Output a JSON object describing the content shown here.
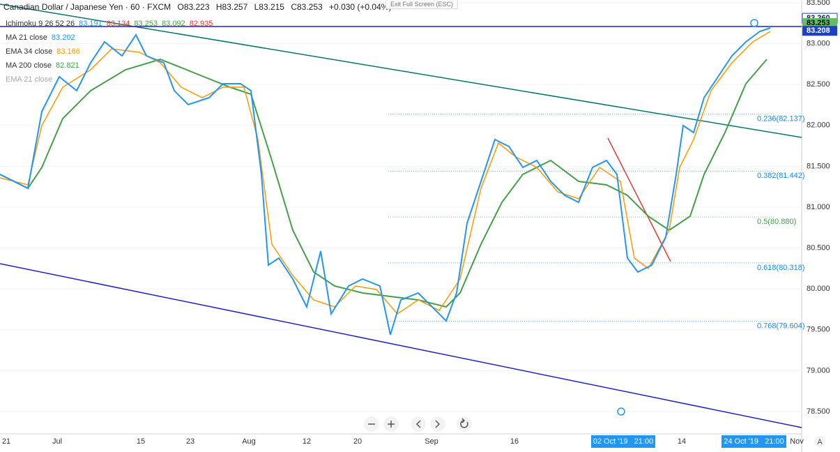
{
  "header": {
    "symbol": "Canadian Dollar / Japanese Yen · 60 · FXCM",
    "open": "O83.223",
    "high": "H83.257",
    "low": "L83.215",
    "close": "C83.253",
    "change": "+0.030 (+0.04%)"
  },
  "exit_button": "Exit Full Screen (ESC)",
  "legend": [
    {
      "name": "Ichimoku 9 26 52 26",
      "values": [
        "83.191",
        "83.134",
        "83.253",
        "83.092",
        "82.935"
      ],
      "colors": [
        "#2196f3",
        "#e53935",
        "#43a047",
        "#43a047",
        "#e53935"
      ]
    },
    {
      "name": "MA 21 close",
      "values": [
        "83.202"
      ],
      "colors": [
        "#2196f3"
      ]
    },
    {
      "name": "EMA 34 close",
      "values": [
        "83.166"
      ],
      "colors": [
        "#ff9800"
      ]
    },
    {
      "name": "MA 200 close",
      "values": [
        "82.821"
      ],
      "colors": [
        "#43a047"
      ]
    },
    {
      "name": "EMA 21 close",
      "values": [],
      "colors": []
    }
  ],
  "price_axis": {
    "range": [
      78.5,
      83.5
    ],
    "ticks": [
      {
        "value": 83.5,
        "label": "83.500"
      },
      {
        "value": 83.0,
        "label": "83.000"
      },
      {
        "value": 82.5,
        "label": "82.500"
      },
      {
        "value": 82.0,
        "label": "82.000"
      },
      {
        "value": 81.5,
        "label": "81.500"
      },
      {
        "value": 81.0,
        "label": "81.000"
      },
      {
        "value": 80.5,
        "label": "80.500"
      },
      {
        "value": 80.0,
        "label": "80.000"
      },
      {
        "value": 79.5,
        "label": "79.500"
      },
      {
        "value": 79.0,
        "label": "79.000"
      },
      {
        "value": 78.5,
        "label": "78.500"
      }
    ],
    "markers": [
      {
        "value": 83.26,
        "label": "83.260",
        "bg": "#ffffff",
        "fg": "#1a237e"
      },
      {
        "value": 83.253,
        "label": "83.253",
        "bg": "#66bb6a",
        "fg": "#000000"
      },
      {
        "value": 83.208,
        "label": "83.208",
        "bg": "#1e3fc8",
        "fg": "#ffffff"
      }
    ]
  },
  "fib_levels": [
    {
      "value": 82.137,
      "label": "0.236(82.137)",
      "color": "#1e88e5"
    },
    {
      "value": 81.442,
      "label": "0.382(81.442)",
      "color": "#1e88e5"
    },
    {
      "value": 80.88,
      "label": "0.5(80.880)",
      "color": "#43a047"
    },
    {
      "value": 80.318,
      "label": "0.618(80.318)",
      "color": "#1e88e5"
    },
    {
      "value": 79.604,
      "label": "0.768(79.604)",
      "color": "#1e88e5"
    }
  ],
  "time_axis": [
    "21",
    "Jul",
    "15",
    "23",
    "Aug",
    "12",
    "20",
    "Sep",
    "16",
    "14",
    "Nov"
  ],
  "time_highlights": [
    "02 Oct '19   21:00",
    "24 Oct '19   21:00"
  ],
  "auto_button": "A"
}
